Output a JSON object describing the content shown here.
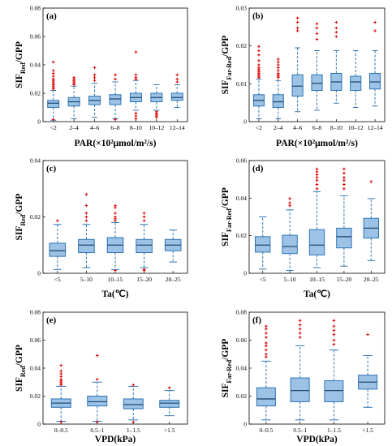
{
  "chart_data": [
    {
      "type": "box",
      "panel_label": "(a)",
      "ylabel_main": "SIF",
      "ylabel_sub": "Red",
      "ylabel_tail": "/GPP",
      "xlabel": "PAR(×10²μmol/m²/s)",
      "ylim": [
        0,
        0.08
      ],
      "yticks": [
        "0",
        "0.02",
        "0.04",
        "0.06",
        "0.08"
      ],
      "categories": [
        "<2",
        "2–4",
        "4–6",
        "6–8",
        "8–10",
        "10–12",
        "12–14"
      ],
      "boxes": [
        {
          "whisker_low": 0.001,
          "q1": 0.01,
          "median": 0.013,
          "q3": 0.015,
          "whisker_high": 0.022,
          "outliers": [
            0.023,
            0.024,
            0.025,
            0.026,
            0.027,
            0.028,
            0.029,
            0.03,
            0.032,
            0.034,
            0.036,
            0.042,
            0.0015
          ]
        },
        {
          "whisker_low": 0.002,
          "q1": 0.011,
          "median": 0.014,
          "q3": 0.017,
          "whisker_high": 0.025,
          "outliers": [
            0.026,
            0.027,
            0.028,
            0.029,
            0.03,
            0.031
          ]
        },
        {
          "whisker_low": 0.003,
          "q1": 0.012,
          "median": 0.015,
          "q3": 0.018,
          "whisker_high": 0.027,
          "outliers": [
            0.029,
            0.031,
            0.033,
            0.038
          ]
        },
        {
          "whisker_low": 0.002,
          "q1": 0.012,
          "median": 0.016,
          "q3": 0.019,
          "whisker_high": 0.028,
          "outliers": [
            0.03,
            0.033,
            0.0015
          ]
        },
        {
          "whisker_low": 0.008,
          "q1": 0.014,
          "median": 0.017,
          "q3": 0.02,
          "whisker_high": 0.029,
          "outliers": [
            0.03,
            0.031,
            0.033,
            0.049,
            0.006,
            0.004,
            0.002
          ]
        },
        {
          "whisker_low": 0.008,
          "q1": 0.014,
          "median": 0.017,
          "q3": 0.02,
          "whisker_high": 0.026,
          "outliers": [
            0.007,
            0.006,
            0.005,
            0.004,
            0.003
          ]
        },
        {
          "whisker_low": 0.01,
          "q1": 0.015,
          "median": 0.017,
          "q3": 0.02,
          "whisker_high": 0.026,
          "outliers": [
            0.028,
            0.03,
            0.033
          ]
        }
      ]
    },
    {
      "type": "box",
      "panel_label": "(b)",
      "ylabel_main": "SIF",
      "ylabel_sub": "Far-Red",
      "ylabel_tail": "/GPP",
      "xlabel": "PAR(×10²μmol/m²/s)",
      "ylim": [
        0,
        0.08
      ],
      "yticks": [
        "0",
        "0.01",
        "0.02",
        "0.03"
      ],
      "categories": [
        "<2",
        "2–4",
        "4–6",
        "6–8",
        "8–10",
        "10–12",
        "12–14"
      ],
      "boxes": [
        {
          "whisker_low": 0.002,
          "q1": 0.011,
          "median": 0.015,
          "q3": 0.019,
          "whisker_high": 0.03,
          "outliers": [
            0.031,
            0.032,
            0.033,
            0.034,
            0.035,
            0.036,
            0.037,
            0.038,
            0.04,
            0.043,
            0.047,
            0.05,
            0.053
          ]
        },
        {
          "whisker_low": 0.002,
          "q1": 0.01,
          "median": 0.014,
          "q3": 0.019,
          "whisker_high": 0.029,
          "outliers": [
            0.031,
            0.032,
            0.033,
            0.034,
            0.036,
            0.038,
            0.04,
            0.042,
            0.044
          ]
        },
        {
          "whisker_low": 0.007,
          "q1": 0.018,
          "median": 0.025,
          "q3": 0.033,
          "whisker_high": 0.052,
          "outliers": [
            0.064,
            0.066,
            0.07,
            0.073
          ]
        },
        {
          "whisker_low": 0.008,
          "q1": 0.022,
          "median": 0.027,
          "q3": 0.033,
          "whisker_high": 0.05,
          "outliers": [
            0.058,
            0.062,
            0.066,
            0.069
          ]
        },
        {
          "whisker_low": 0.013,
          "q1": 0.022,
          "median": 0.028,
          "q3": 0.034,
          "whisker_high": 0.05,
          "outliers": [
            0.06,
            0.063,
            0.066,
            0.07
          ]
        },
        {
          "whisker_low": 0.01,
          "q1": 0.022,
          "median": 0.028,
          "q3": 0.032,
          "whisker_high": 0.05,
          "outliers": []
        },
        {
          "whisker_low": 0.011,
          "q1": 0.023,
          "median": 0.028,
          "q3": 0.034,
          "whisker_high": 0.05,
          "outliers": [
            0.064,
            0.07
          ]
        }
      ]
    },
    {
      "type": "box",
      "panel_label": "(c)",
      "ylabel_main": "SIF",
      "ylabel_sub": "Red",
      "ylabel_tail": "/GPP",
      "xlabel": "Ta(℃)",
      "ylim": [
        0,
        0.06
      ],
      "yticks": [
        "0",
        "0.02",
        "0.04"
      ],
      "categories": [
        "<5",
        "5–10",
        "10–15",
        "15–20",
        "20–25"
      ],
      "boxes": [
        {
          "whisker_low": 0.002,
          "q1": 0.009,
          "median": 0.012,
          "q3": 0.016,
          "whisker_high": 0.026,
          "outliers": [
            0.028
          ]
        },
        {
          "whisker_low": 0.003,
          "q1": 0.011,
          "median": 0.015,
          "q3": 0.018,
          "whisker_high": 0.026,
          "outliers": [
            0.028,
            0.03,
            0.032,
            0.036,
            0.042
          ]
        },
        {
          "whisker_low": 0.002,
          "q1": 0.011,
          "median": 0.015,
          "q3": 0.019,
          "whisker_high": 0.027,
          "outliers": [
            0.028,
            0.029,
            0.03,
            0.032,
            0.035,
            0.036,
            0.0015
          ]
        },
        {
          "whisker_low": 0.003,
          "q1": 0.011,
          "median": 0.015,
          "q3": 0.018,
          "whisker_high": 0.026,
          "outliers": [
            0.028,
            0.03,
            0.032,
            0.002,
            0.0015
          ]
        },
        {
          "whisker_low": 0.006,
          "q1": 0.012,
          "median": 0.015,
          "q3": 0.018,
          "whisker_high": 0.023,
          "outliers": []
        }
      ]
    },
    {
      "type": "box",
      "panel_label": "(d)",
      "ylabel_main": "SIF",
      "ylabel_sub": "Far-Red",
      "ylabel_tail": "/GPP",
      "xlabel": "Ta(℃)",
      "ylim": [
        0,
        0.08
      ],
      "yticks": [
        "0",
        "0.02",
        "0.04",
        "0.06"
      ],
      "categories": [
        "<5",
        "5–10",
        "10–15",
        "15–20",
        "20–25"
      ],
      "boxes": [
        {
          "whisker_low": 0.003,
          "q1": 0.015,
          "median": 0.02,
          "q3": 0.026,
          "whisker_high": 0.04,
          "outliers": []
        },
        {
          "whisker_low": 0.002,
          "q1": 0.014,
          "median": 0.019,
          "q3": 0.027,
          "whisker_high": 0.045,
          "outliers": [
            0.048,
            0.05,
            0.053
          ]
        },
        {
          "whisker_low": 0.004,
          "q1": 0.013,
          "median": 0.02,
          "q3": 0.031,
          "whisker_high": 0.058,
          "outliers": [
            0.06,
            0.063,
            0.066,
            0.068,
            0.07,
            0.072,
            0.074
          ]
        },
        {
          "whisker_low": 0.005,
          "q1": 0.018,
          "median": 0.026,
          "q3": 0.032,
          "whisker_high": 0.055,
          "outliers": [
            0.06,
            0.063,
            0.066,
            0.068,
            0.071,
            0.074
          ]
        },
        {
          "whisker_low": 0.009,
          "q1": 0.025,
          "median": 0.032,
          "q3": 0.039,
          "whisker_high": 0.053,
          "outliers": [
            0.065
          ]
        }
      ]
    },
    {
      "type": "box",
      "panel_label": "(e)",
      "ylabel_main": "SIF",
      "ylabel_sub": "Red",
      "ylabel_tail": "/GPP",
      "xlabel": "VPD(kPa)",
      "ylim": [
        0,
        0.08
      ],
      "yticks": [
        "0",
        "0.02",
        "0.04",
        "0.06",
        "0.08"
      ],
      "categories": [
        "0–0.5",
        "0.5–1",
        "1–1.5",
        ">1.5"
      ],
      "boxes": [
        {
          "whisker_low": 0.002,
          "q1": 0.012,
          "median": 0.015,
          "q3": 0.018,
          "whisker_high": 0.027,
          "outliers": [
            0.028,
            0.029,
            0.03,
            0.031,
            0.032,
            0.034,
            0.036,
            0.038,
            0.042,
            0.0015
          ]
        },
        {
          "whisker_low": 0.002,
          "q1": 0.013,
          "median": 0.016,
          "q3": 0.02,
          "whisker_high": 0.03,
          "outliers": [
            0.032,
            0.049,
            0.0015
          ]
        },
        {
          "whisker_low": 0.003,
          "q1": 0.011,
          "median": 0.014,
          "q3": 0.018,
          "whisker_high": 0.027,
          "outliers": [
            0.028,
            0.0015
          ]
        },
        {
          "whisker_low": 0.006,
          "q1": 0.012,
          "median": 0.015,
          "q3": 0.017,
          "whisker_high": 0.024,
          "outliers": [
            0.026
          ]
        }
      ]
    },
    {
      "type": "box",
      "panel_label": "(f)",
      "ylabel_main": "SIF",
      "ylabel_sub": "Far-Red",
      "ylabel_tail": "/GPP",
      "xlabel": "VPD(kPa)",
      "ylim": [
        0,
        0.08
      ],
      "yticks": [
        "0",
        "0.02",
        "0.04",
        "0.06",
        "0.08"
      ],
      "categories": [
        "0–0.5",
        "0.5–1",
        "1–1.5",
        ">1.5"
      ],
      "boxes": [
        {
          "whisker_low": 0.003,
          "q1": 0.013,
          "median": 0.018,
          "q3": 0.026,
          "whisker_high": 0.045,
          "outliers": [
            0.048,
            0.05,
            0.053,
            0.056,
            0.058,
            0.062,
            0.065,
            0.068,
            0.07
          ]
        },
        {
          "whisker_low": 0.003,
          "q1": 0.016,
          "median": 0.024,
          "q3": 0.033,
          "whisker_high": 0.056,
          "outliers": [
            0.062,
            0.065,
            0.068,
            0.071,
            0.074
          ]
        },
        {
          "whisker_low": 0.003,
          "q1": 0.016,
          "median": 0.024,
          "q3": 0.031,
          "whisker_high": 0.053,
          "outliers": [
            0.057,
            0.06,
            0.064,
            0.067,
            0.07,
            0.074
          ]
        },
        {
          "whisker_low": 0.012,
          "q1": 0.025,
          "median": 0.03,
          "q3": 0.035,
          "whisker_high": 0.049,
          "outliers": [
            0.064
          ]
        }
      ]
    }
  ]
}
